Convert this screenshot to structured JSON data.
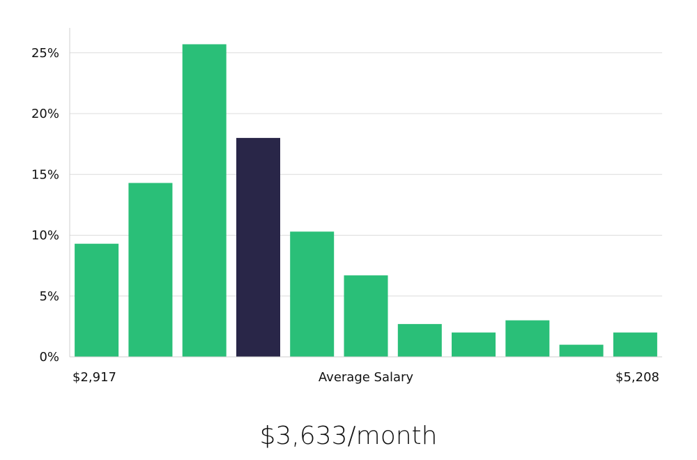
{
  "chart_data": {
    "type": "bar",
    "x_range_labels": [
      "$2,917",
      "$5,208"
    ],
    "xlabel": "Average Salary",
    "yticks": [
      0,
      5,
      10,
      15,
      20,
      25
    ],
    "ytick_suffix": "%",
    "ylim": [
      0,
      27
    ],
    "grid": true,
    "values": [
      9.3,
      14.3,
      25.7,
      18.0,
      10.3,
      6.7,
      2.7,
      2.0,
      3.0,
      1.0,
      2.0
    ],
    "highlight_index": 3,
    "colors": {
      "bar": "#2abf78",
      "highlight": "#292648",
      "grid": "#dcdcdc",
      "axis": "#cfcfcf"
    }
  },
  "headline": "$3,633/month"
}
